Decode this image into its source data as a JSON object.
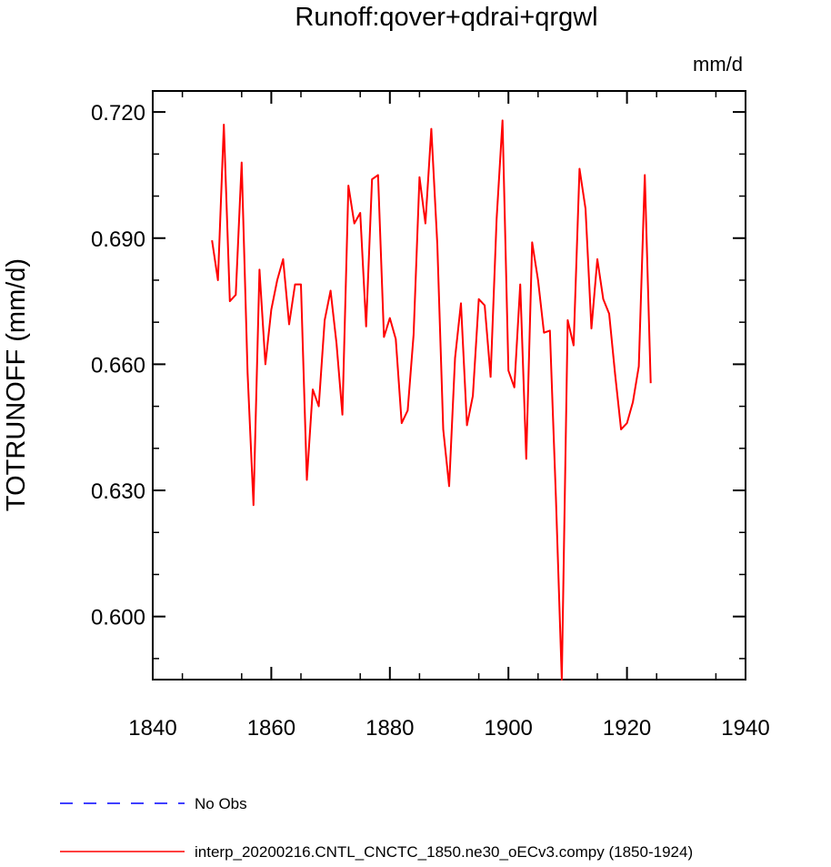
{
  "chart_data": {
    "type": "line",
    "title": "Runoff:qover+qdrai+qrgwl",
    "units_label": "mm/d",
    "ylabel": "TOTRUNOFF  (mm/d)",
    "xlabel": "",
    "xlim": [
      1840,
      1940
    ],
    "ylim": [
      0.585,
      0.725
    ],
    "x_ticks": [
      1840,
      1860,
      1880,
      1900,
      1920,
      1940
    ],
    "x_tick_labels": [
      "1840",
      "1860",
      "1880",
      "1900",
      "1920",
      "1940"
    ],
    "y_ticks": [
      0.6,
      0.63,
      0.66,
      0.69,
      0.72
    ],
    "y_tick_labels": [
      "0.600",
      "0.630",
      "0.660",
      "0.690",
      "0.720"
    ],
    "grid": false,
    "legend_position": "bottom-left",
    "legend": [
      {
        "label": "No Obs",
        "color": "#0000ff",
        "style": "dashed"
      },
      {
        "label": "interp_20200216.CNTL_CNCTC_1850.ne30_oECv3.compy (1850-1924)",
        "color": "#ff0000",
        "style": "solid"
      }
    ],
    "series": [
      {
        "name": "interp_20200216.CNTL_CNCTC_1850.ne30_oECv3.compy (1850-1924)",
        "color": "#ff0000",
        "x": [
          1850,
          1851,
          1852,
          1853,
          1854,
          1855,
          1856,
          1857,
          1858,
          1859,
          1860,
          1861,
          1862,
          1863,
          1864,
          1865,
          1866,
          1867,
          1868,
          1869,
          1870,
          1871,
          1872,
          1873,
          1874,
          1875,
          1876,
          1877,
          1878,
          1879,
          1880,
          1881,
          1882,
          1883,
          1884,
          1885,
          1886,
          1887,
          1888,
          1889,
          1890,
          1891,
          1892,
          1893,
          1894,
          1895,
          1896,
          1897,
          1898,
          1899,
          1900,
          1901,
          1902,
          1903,
          1904,
          1905,
          1906,
          1907,
          1908,
          1909,
          1910,
          1911,
          1912,
          1913,
          1914,
          1915,
          1916,
          1917,
          1918,
          1919,
          1920,
          1921,
          1922,
          1923,
          1924
        ],
        "values": [
          0.6895,
          0.68,
          0.717,
          0.675,
          0.6765,
          0.708,
          0.658,
          0.6265,
          0.6825,
          0.66,
          0.673,
          0.68,
          0.685,
          0.6695,
          0.679,
          0.679,
          0.6325,
          0.654,
          0.65,
          0.6705,
          0.6775,
          0.665,
          0.648,
          0.7025,
          0.6935,
          0.696,
          0.669,
          0.704,
          0.705,
          0.6665,
          0.671,
          0.666,
          0.646,
          0.649,
          0.667,
          0.7045,
          0.6935,
          0.716,
          0.6885,
          0.6445,
          0.631,
          0.6615,
          0.6745,
          0.6455,
          0.6525,
          0.6755,
          0.674,
          0.657,
          0.6945,
          0.718,
          0.6585,
          0.6545,
          0.679,
          0.6375,
          0.689,
          0.68,
          0.6675,
          0.668,
          0.6285,
          0.585,
          0.6705,
          0.6645,
          0.7065,
          0.697,
          0.6685,
          0.685,
          0.6755,
          0.672,
          0.6575,
          0.6445,
          0.646,
          0.651,
          0.6595,
          0.705,
          0.6555
        ]
      }
    ]
  }
}
